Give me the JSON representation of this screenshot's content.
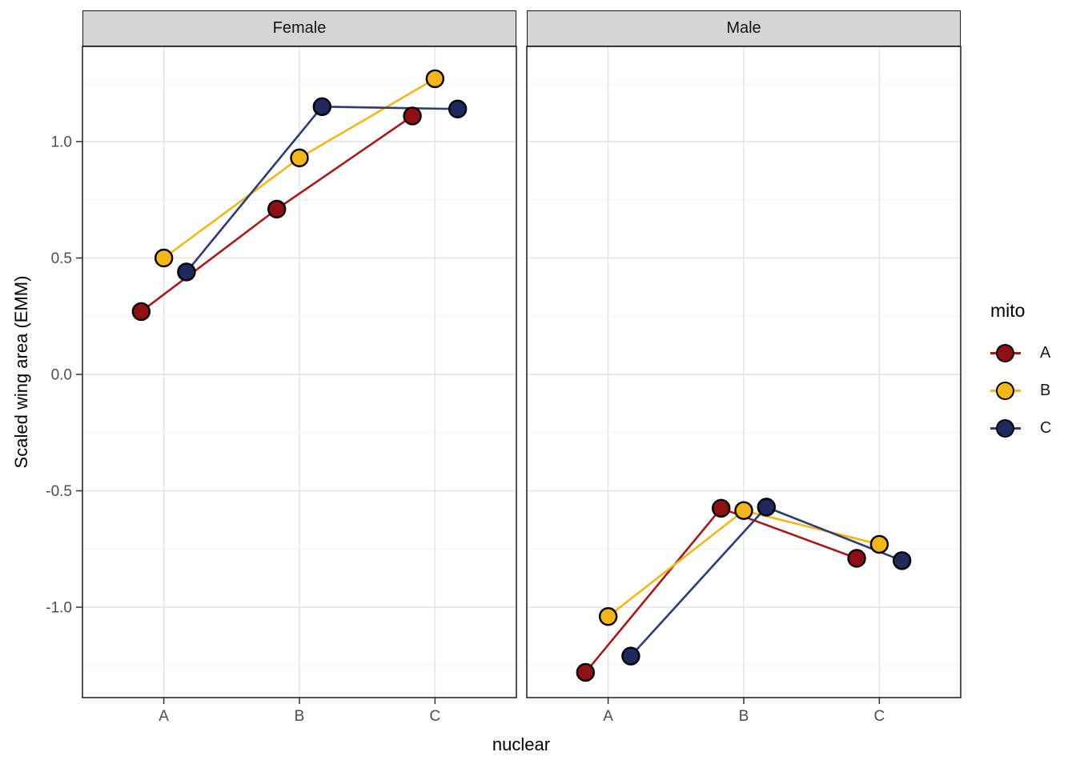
{
  "chart_data": {
    "type": "line",
    "title": "",
    "xlabel": "nuclear",
    "ylabel": "Scaled wing area (EMM)",
    "x_categories": [
      "A",
      "B",
      "C"
    ],
    "y_ticks": {
      "values": [
        1.0,
        0.5,
        0.0,
        -0.5,
        -1.0
      ],
      "labels": [
        "1.0",
        "0.5",
        "0.0",
        "-0.5",
        "-1.0"
      ]
    },
    "y_minor_ticks": [
      1.25,
      0.75,
      0.25,
      -0.25,
      -0.75,
      -1.25
    ],
    "ylim": [
      -1.39,
      1.41
    ],
    "grid": "horizontal major+minor, vertical major at categories",
    "dodge_offset": 0.167,
    "legend": {
      "title": "mito",
      "position": "right",
      "items": [
        {
          "label": "A",
          "color": "#8E1014",
          "line_color": "#A41A1A"
        },
        {
          "label": "B",
          "color": "#F2B618",
          "line_color": "#F2B618"
        },
        {
          "label": "C",
          "color": "#1E2A5E",
          "line_color": "#2E3C72"
        }
      ]
    },
    "facets": [
      {
        "label": "Female",
        "series": [
          {
            "name": "A",
            "values": [
              0.27,
              0.71,
              1.11
            ]
          },
          {
            "name": "B",
            "values": [
              0.5,
              0.93,
              1.27
            ]
          },
          {
            "name": "C",
            "values": [
              0.44,
              1.15,
              1.14
            ]
          }
        ]
      },
      {
        "label": "Male",
        "series": [
          {
            "name": "A",
            "values": [
              -1.28,
              -0.575,
              -0.79
            ]
          },
          {
            "name": "B",
            "values": [
              -1.04,
              -0.585,
              -0.73
            ]
          },
          {
            "name": "C",
            "values": [
              -1.21,
              -0.57,
              -0.8
            ]
          }
        ]
      }
    ]
  }
}
